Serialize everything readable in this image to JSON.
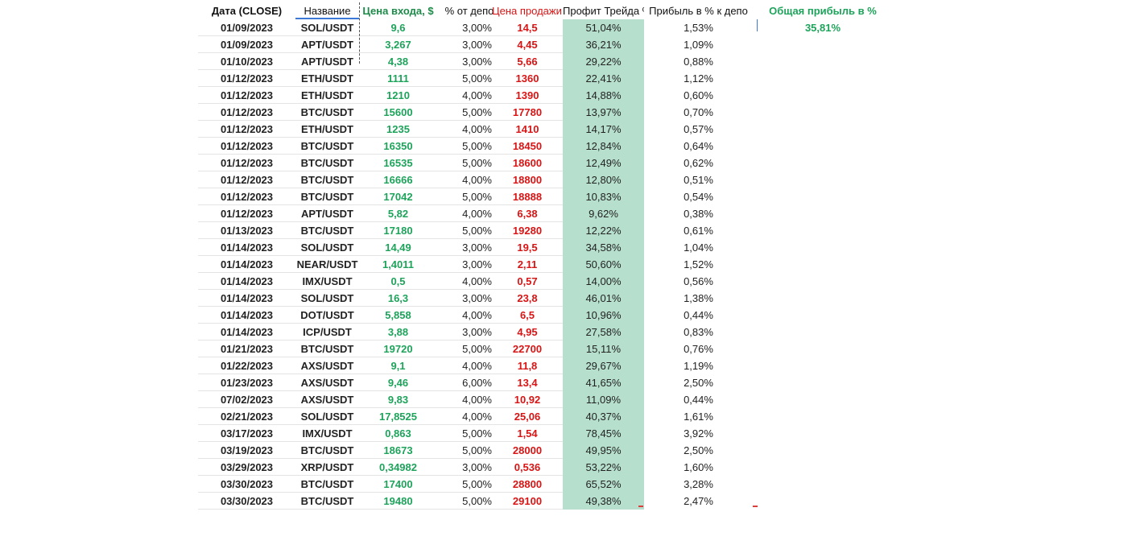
{
  "headers": {
    "date": "Дата (CLOSE)",
    "name": "Название",
    "entry": "Цена входа, $",
    "pct": "% от депо",
    "exit": "Цена продажи",
    "profit": "Профит Трейда %",
    "depo": "Прибыль в % к депо"
  },
  "total": {
    "title": "Общая прибыль в %",
    "value": "35,81%"
  },
  "rows": [
    {
      "date": "01/09/2023",
      "name": "SOL/USDT",
      "entry": "9,6",
      "pct": "3,00%",
      "exit": "14,5",
      "profit": "51,04%",
      "depo": "1,53%"
    },
    {
      "date": "01/09/2023",
      "name": "APT/USDT",
      "entry": "3,267",
      "pct": "3,00%",
      "exit": "4,45",
      "profit": "36,21%",
      "depo": "1,09%"
    },
    {
      "date": "01/10/2023",
      "name": "APT/USDT",
      "entry": "4,38",
      "pct": "3,00%",
      "exit": "5,66",
      "profit": "29,22%",
      "depo": "0,88%"
    },
    {
      "date": "01/12/2023",
      "name": "ETH/USDT",
      "entry": "1111",
      "pct": "5,00%",
      "exit": "1360",
      "profit": "22,41%",
      "depo": "1,12%"
    },
    {
      "date": "01/12/2023",
      "name": "ETH/USDT",
      "entry": "1210",
      "pct": "4,00%",
      "exit": "1390",
      "profit": "14,88%",
      "depo": "0,60%"
    },
    {
      "date": "01/12/2023",
      "name": "BTC/USDT",
      "entry": "15600",
      "pct": "5,00%",
      "exit": "17780",
      "profit": "13,97%",
      "depo": "0,70%"
    },
    {
      "date": "01/12/2023",
      "name": "ETH/USDT",
      "entry": "1235",
      "pct": "4,00%",
      "exit": "1410",
      "profit": "14,17%",
      "depo": "0,57%"
    },
    {
      "date": "01/12/2023",
      "name": "BTC/USDT",
      "entry": "16350",
      "pct": "5,00%",
      "exit": "18450",
      "profit": "12,84%",
      "depo": "0,64%"
    },
    {
      "date": "01/12/2023",
      "name": "BTC/USDT",
      "entry": "16535",
      "pct": "5,00%",
      "exit": "18600",
      "profit": "12,49%",
      "depo": "0,62%"
    },
    {
      "date": "01/12/2023",
      "name": "BTC/USDT",
      "entry": "16666",
      "pct": "4,00%",
      "exit": "18800",
      "profit": "12,80%",
      "depo": "0,51%"
    },
    {
      "date": "01/12/2023",
      "name": "BTC/USDT",
      "entry": "17042",
      "pct": "5,00%",
      "exit": "18888",
      "profit": "10,83%",
      "depo": "0,54%"
    },
    {
      "date": "01/12/2023",
      "name": "APT/USDT",
      "entry": "5,82",
      "pct": "4,00%",
      "exit": "6,38",
      "profit": "9,62%",
      "depo": "0,38%"
    },
    {
      "date": "01/13/2023",
      "name": "BTC/USDT",
      "entry": "17180",
      "pct": "5,00%",
      "exit": "19280",
      "profit": "12,22%",
      "depo": "0,61%"
    },
    {
      "date": "01/14/2023",
      "name": "SOL/USDT",
      "entry": "14,49",
      "pct": "3,00%",
      "exit": "19,5",
      "profit": "34,58%",
      "depo": "1,04%"
    },
    {
      "date": "01/14/2023",
      "name": "NEAR/USDT",
      "entry": "1,4011",
      "pct": "3,00%",
      "exit": "2,11",
      "profit": "50,60%",
      "depo": "1,52%"
    },
    {
      "date": "01/14/2023",
      "name": "IMX/USDT",
      "entry": "0,5",
      "pct": "4,00%",
      "exit": "0,57",
      "profit": "14,00%",
      "depo": "0,56%"
    },
    {
      "date": "01/14/2023",
      "name": "SOL/USDT",
      "entry": "16,3",
      "pct": "3,00%",
      "exit": "23,8",
      "profit": "46,01%",
      "depo": "1,38%"
    },
    {
      "date": "01/14/2023",
      "name": "DOT/USDT",
      "entry": "5,858",
      "pct": "4,00%",
      "exit": "6,5",
      "profit": "10,96%",
      "depo": "0,44%"
    },
    {
      "date": "01/14/2023",
      "name": "ICP/USDT",
      "entry": "3,88",
      "pct": "3,00%",
      "exit": "4,95",
      "profit": "27,58%",
      "depo": "0,83%"
    },
    {
      "date": "01/21/2023",
      "name": "BTC/USDT",
      "entry": "19720",
      "pct": "5,00%",
      "exit": "22700",
      "profit": "15,11%",
      "depo": "0,76%"
    },
    {
      "date": "01/22/2023",
      "name": "AXS/USDT",
      "entry": "9,1",
      "pct": "4,00%",
      "exit": "11,8",
      "profit": "29,67%",
      "depo": "1,19%"
    },
    {
      "date": "01/23/2023",
      "name": "AXS/USDT",
      "entry": "9,46",
      "pct": "6,00%",
      "exit": "13,4",
      "profit": "41,65%",
      "depo": "2,50%"
    },
    {
      "date": "07/02/2023",
      "name": "AXS/USDT",
      "entry": "9,83",
      "pct": "4,00%",
      "exit": "10,92",
      "profit": "11,09%",
      "depo": "0,44%"
    },
    {
      "date": "02/21/2023",
      "name": "SOL/USDT",
      "entry": "17,8525",
      "pct": "4,00%",
      "exit": "25,06",
      "profit": "40,37%",
      "depo": "1,61%"
    },
    {
      "date": "03/17/2023",
      "name": "IMX/USDT",
      "entry": "0,863",
      "pct": "5,00%",
      "exit": "1,54",
      "profit": "78,45%",
      "depo": "3,92%"
    },
    {
      "date": "03/19/2023",
      "name": "BTC/USDT",
      "entry": "18673",
      "pct": "5,00%",
      "exit": "28000",
      "profit": "49,95%",
      "depo": "2,50%"
    },
    {
      "date": "03/29/2023",
      "name": "XRP/USDT",
      "entry": "0,34982",
      "pct": "3,00%",
      "exit": "0,536",
      "profit": "53,22%",
      "depo": "1,60%"
    },
    {
      "date": "03/30/2023",
      "name": "BTC/USDT",
      "entry": "17400",
      "pct": "5,00%",
      "exit": "28800",
      "profit": "65,52%",
      "depo": "3,28%"
    },
    {
      "date": "03/30/2023",
      "name": "BTC/USDT",
      "entry": "19480",
      "pct": "5,00%",
      "exit": "29100",
      "profit": "49,38%",
      "depo": "2,47%"
    }
  ],
  "colors": {
    "entry_green": "#1ea35b",
    "exit_red": "#d91414",
    "profit_fill": "#b6e0cd",
    "selection_blue": "#3c78d8"
  }
}
